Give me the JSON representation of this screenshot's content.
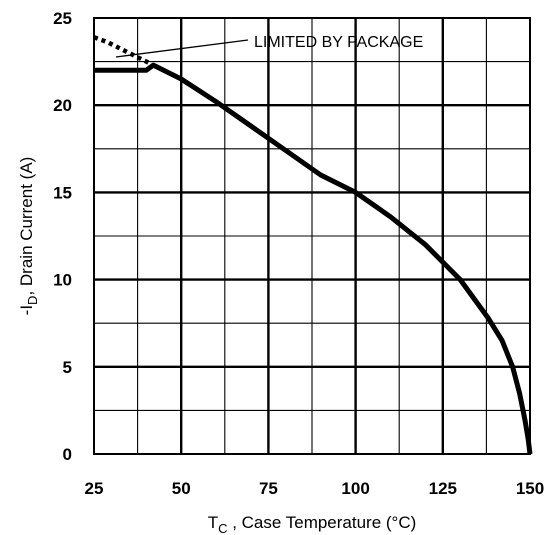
{
  "chart_data": {
    "type": "line",
    "title": "",
    "xlabel": {
      "main": "T",
      "sub": "C",
      "rest": " , Case Temperature (°C)"
    },
    "ylabel": {
      "prefix": "-I",
      "sub": "D",
      "rest": ", Drain Current  (A)"
    },
    "xlim": [
      25,
      150
    ],
    "ylim": [
      0,
      25
    ],
    "xticks": [
      25,
      50,
      75,
      100,
      125,
      150
    ],
    "yticks": [
      0,
      5,
      10,
      15,
      20,
      25
    ],
    "grid": true,
    "annotation": "LIMITED BY PACKAGE",
    "series": [
      {
        "style": "solid",
        "x": [
          25,
          40,
          42,
          50,
          60,
          70,
          80,
          90,
          100,
          110,
          120,
          130,
          138,
          142,
          145,
          147,
          148.5,
          149.5,
          150
        ],
        "y": [
          22,
          22,
          22.3,
          21.5,
          20.2,
          18.8,
          17.4,
          16.0,
          15.0,
          13.6,
          12.0,
          10.0,
          7.8,
          6.5,
          5.0,
          3.5,
          2.0,
          0.8,
          0
        ]
      },
      {
        "style": "dotted",
        "x": [
          25,
          29,
          33,
          37,
          41
        ],
        "y": [
          23.9,
          23.6,
          23.2,
          22.8,
          22.4
        ]
      }
    ]
  },
  "colors": {
    "line": "#000000",
    "grid": "#000000",
    "background": "#ffffff"
  }
}
